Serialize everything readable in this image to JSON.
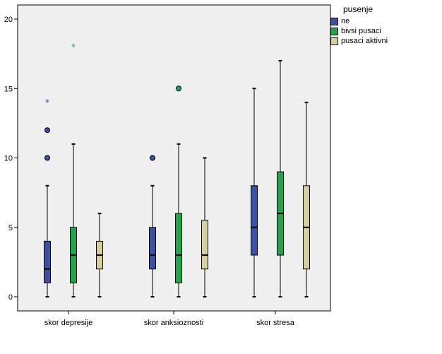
{
  "chart_data": {
    "type": "boxplot",
    "title": "",
    "xlabel": "",
    "ylabel": "",
    "ylim": [
      0,
      20
    ],
    "yticks": [
      0,
      5,
      10,
      15,
      20
    ],
    "legend_title": "pusenje",
    "legend_position": "top-right",
    "categories": [
      "skor depresije",
      "skor anksioznosti",
      "skor stresa"
    ],
    "series": [
      {
        "name": "ne",
        "color": "#3b51a3",
        "boxes": [
          {
            "min": 0,
            "q1": 1,
            "median": 2,
            "q3": 4,
            "max": 8,
            "outliers": [
              10,
              12
            ],
            "extremes": [
              14
            ]
          },
          {
            "min": 0,
            "q1": 2,
            "median": 3,
            "q3": 5,
            "max": 8,
            "outliers": [
              10
            ],
            "extremes": []
          },
          {
            "min": 0,
            "q1": 3,
            "median": 5,
            "q3": 8,
            "max": 15,
            "outliers": [],
            "extremes": []
          }
        ]
      },
      {
        "name": "bivsi pusaci",
        "color": "#1ea64a",
        "boxes": [
          {
            "min": 0,
            "q1": 1,
            "median": 3,
            "q3": 5,
            "max": 11,
            "outliers": [],
            "extremes": [
              18
            ]
          },
          {
            "min": 0,
            "q1": 1,
            "median": 3,
            "q3": 6,
            "max": 11,
            "outliers": [
              15
            ],
            "extremes": []
          },
          {
            "min": 0,
            "q1": 3,
            "median": 6,
            "q3": 9,
            "max": 17,
            "outliers": [],
            "extremes": []
          }
        ]
      },
      {
        "name": "pusaci aktivni",
        "color": "#d9cf9c",
        "boxes": [
          {
            "min": 0,
            "q1": 2,
            "median": 3,
            "q3": 4,
            "max": 6,
            "outliers": [],
            "extremes": []
          },
          {
            "min": 0,
            "q1": 2,
            "median": 3,
            "q3": 5.5,
            "max": 10,
            "outliers": [],
            "extremes": []
          },
          {
            "min": 0,
            "q1": 2,
            "median": 5,
            "q3": 8,
            "max": 14,
            "outliers": [],
            "extremes": []
          }
        ]
      }
    ],
    "plot_background": "#f0f0f0",
    "grid": false
  }
}
